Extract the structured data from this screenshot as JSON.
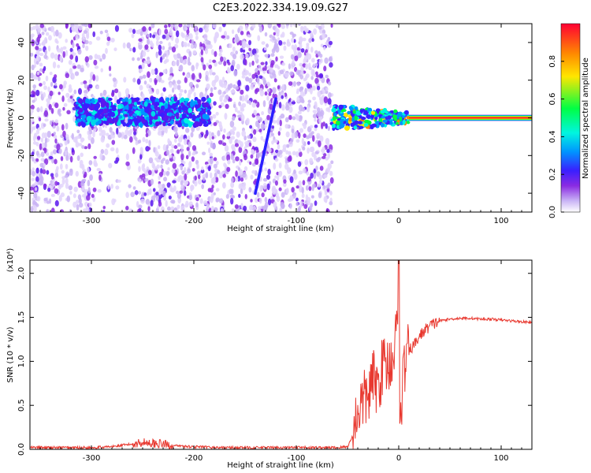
{
  "title": "C2E3.2022.334.19.09.G27",
  "colors": {
    "spectrogram_background": "#ffffff",
    "snr_line": "#e8382f",
    "colorbar": [
      "#ffffff",
      "#c9b3f5",
      "#8a2be2",
      "#3a1fff",
      "#0095ff",
      "#00f5e0",
      "#00ff44",
      "#ffe600",
      "#ff8a00",
      "#ff0033"
    ]
  },
  "chart_data": [
    {
      "type": "heatmap",
      "xlabel": "Height of straight line (km)",
      "ylabel": "Frequency (Hz)",
      "xlim": [
        -360,
        130
      ],
      "ylim": [
        -50,
        50
      ],
      "xticks": [
        -300,
        -200,
        -100,
        0,
        100
      ],
      "yticks": [
        -40,
        -20,
        0,
        20,
        40
      ],
      "xtick_labels": [
        "-300",
        "-200",
        "-100",
        "0",
        "100"
      ],
      "ytick_labels": [
        "-40",
        "-20",
        "0",
        "20",
        "40"
      ],
      "colorbar": {
        "label": "Normalized spectral amplitude",
        "range": [
          0.0,
          1.0
        ],
        "ticks": [
          0.0,
          0.2,
          0.4,
          0.6,
          0.8
        ],
        "tick_labels": [
          "0.0",
          "0.2",
          "0.4",
          "0.6",
          "0.8"
        ]
      },
      "features": {
        "noise_region_x": [
          -360,
          -65
        ],
        "noise_low_density_x": [
          -300,
          -255
        ],
        "central_band": {
          "x": [
            -315,
            -185
          ],
          "freq_center": 3,
          "amplitude_peak": 0.35
        },
        "diagonal_streak": {
          "x": [
            -140,
            -120
          ],
          "freq": [
            -40,
            10
          ]
        },
        "transition_x": [
          -65,
          10
        ],
        "carrier_line": {
          "x": [
            10,
            130
          ],
          "freq": 0,
          "amplitude": 1.0
        }
      }
    },
    {
      "type": "line",
      "xlabel": "Height of straight line (km)",
      "ylabel": "SNR (10 * v/v)",
      "y_scale_label": "(x10⁴)",
      "xlim": [
        -360,
        130
      ],
      "ylim": [
        0,
        2.15
      ],
      "xticks": [
        -300,
        -200,
        -100,
        0,
        100
      ],
      "yticks": [
        0.0,
        0.5,
        1.0,
        1.5,
        2.0
      ],
      "xtick_labels": [
        "-300",
        "-200",
        "-100",
        "0",
        "100"
      ],
      "ytick_labels": [
        "0.0",
        "0.5",
        "1.0",
        "1.5",
        "2.0"
      ],
      "series": [
        {
          "x": [
            -360,
            -340,
            -320,
            -300,
            -280,
            -260,
            -250,
            -240,
            -230,
            -220,
            -200,
            -180,
            -160,
            -140,
            -120,
            -100,
            -80,
            -60,
            -50,
            -45,
            -40,
            -35,
            -30,
            -25,
            -20,
            -15,
            -10,
            -5,
            -2,
            0,
            1,
            3,
            5,
            8,
            12,
            16,
            20,
            25,
            30,
            35,
            40,
            50,
            60,
            70,
            80,
            90,
            100,
            110,
            120,
            130
          ],
          "values": [
            0.02,
            0.02,
            0.02,
            0.02,
            0.03,
            0.06,
            0.08,
            0.07,
            0.06,
            0.04,
            0.03,
            0.02,
            0.02,
            0.02,
            0.02,
            0.02,
            0.02,
            0.02,
            0.03,
            0.15,
            0.45,
            0.55,
            0.6,
            0.8,
            0.7,
            1.0,
            0.95,
            1.1,
            1.3,
            2.15,
            0.15,
            0.6,
            0.9,
            1.05,
            1.15,
            1.2,
            1.28,
            1.35,
            1.4,
            1.43,
            1.46,
            1.48,
            1.49,
            1.49,
            1.48,
            1.48,
            1.47,
            1.46,
            1.45,
            1.44
          ]
        }
      ]
    }
  ]
}
